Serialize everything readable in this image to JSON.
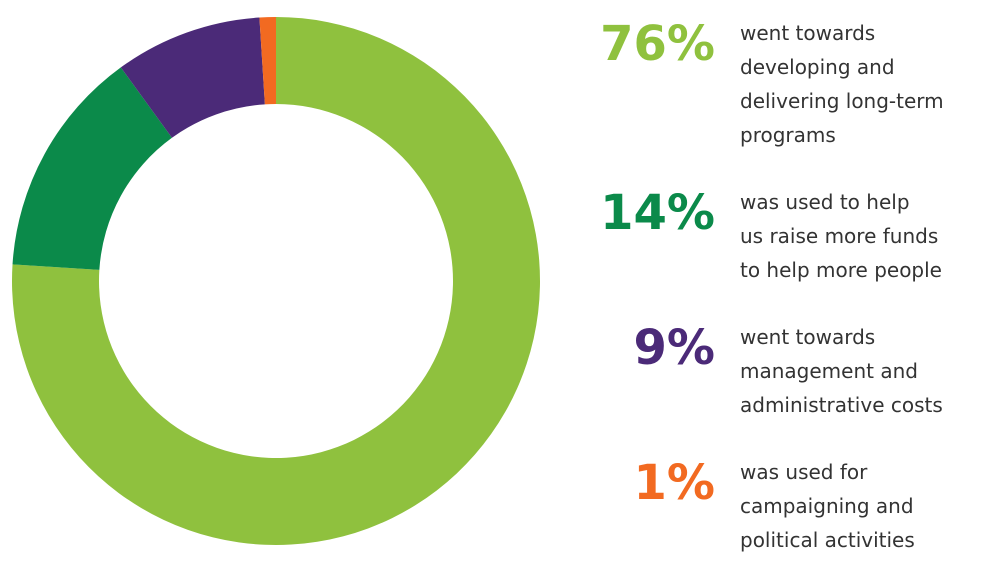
{
  "chart_data": {
    "type": "pie",
    "style": "donut",
    "categories": [
      "went towards developing and delivering long-term programs",
      "was used to help us raise more funds to help more people",
      "went towards management and administrative costs",
      "was used for campaigning and political activities"
    ],
    "values": [
      76,
      14,
      9,
      1
    ],
    "value_labels": [
      "76%",
      "14%",
      "9%",
      "1%"
    ],
    "colors": [
      "#8fc13e",
      "#0b8a4a",
      "#4b2a78",
      "#f26a21"
    ],
    "legend_placement": "right"
  },
  "legend": [
    {
      "value_label": "76%",
      "text": "went towards\ndeveloping and\ndelivering long-term\nprograms",
      "color": "#8fc13e"
    },
    {
      "value_label": "14%",
      "text": "was used to help\nus raise more funds\nto help more people",
      "color": "#0b8a4a"
    },
    {
      "value_label": "9%",
      "text": "went towards\nmanagement and\nadministrative costs",
      "color": "#4b2a78"
    },
    {
      "value_label": "1%",
      "text": "was used for\ncampaigning and\npolitical activities",
      "color": "#f26a21"
    }
  ]
}
